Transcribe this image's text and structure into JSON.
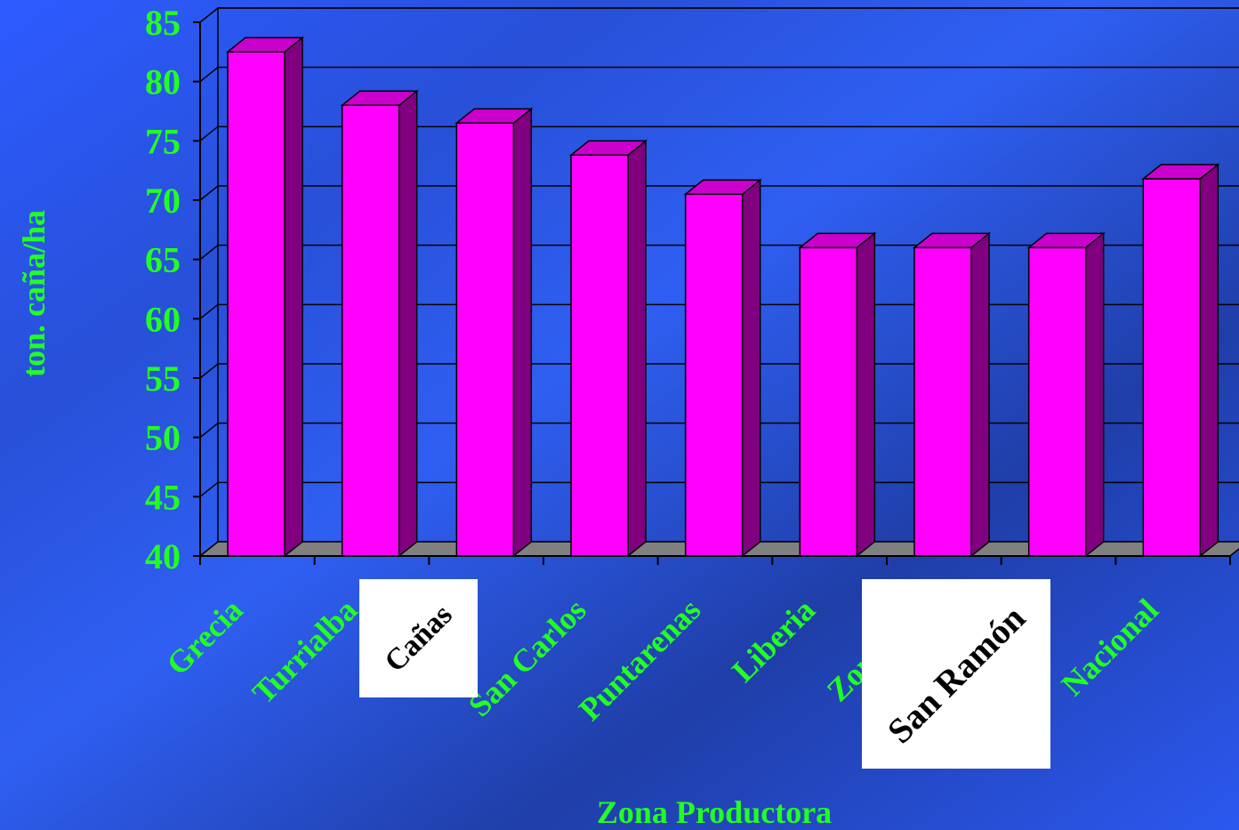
{
  "colors": {
    "label": "#22ff22",
    "bar_front": "#ff00ff",
    "bar_side": "#800080",
    "bar_top": "#cc00cc",
    "floor": "#808080",
    "grid": "#000000",
    "pasted_box": "#ffffff",
    "pasted_text": "#000000"
  },
  "chart_data": {
    "type": "bar",
    "style": "3d-column",
    "title": "",
    "xlabel": "Zona Productora",
    "ylabel": "ton. caña/ha",
    "ylim": [
      40,
      85
    ],
    "ytick_step": 5,
    "yticks": [
      "40",
      "45",
      "50",
      "55",
      "60",
      "65",
      "70",
      "75",
      "80",
      "85"
    ],
    "grid": true,
    "legend": "none",
    "categories": [
      "Grecia",
      "Turrialba",
      "Cañas",
      "San Carlos",
      "Puntarenas",
      "Liberia",
      "Zona Sur",
      "San Ramón",
      "Nacional"
    ],
    "values": [
      82.5,
      78,
      76.5,
      73.8,
      70.5,
      66,
      66,
      66,
      71.8
    ]
  },
  "pasted_labels": [
    {
      "text": "Cañas"
    },
    {
      "text": "San Ramón"
    }
  ]
}
